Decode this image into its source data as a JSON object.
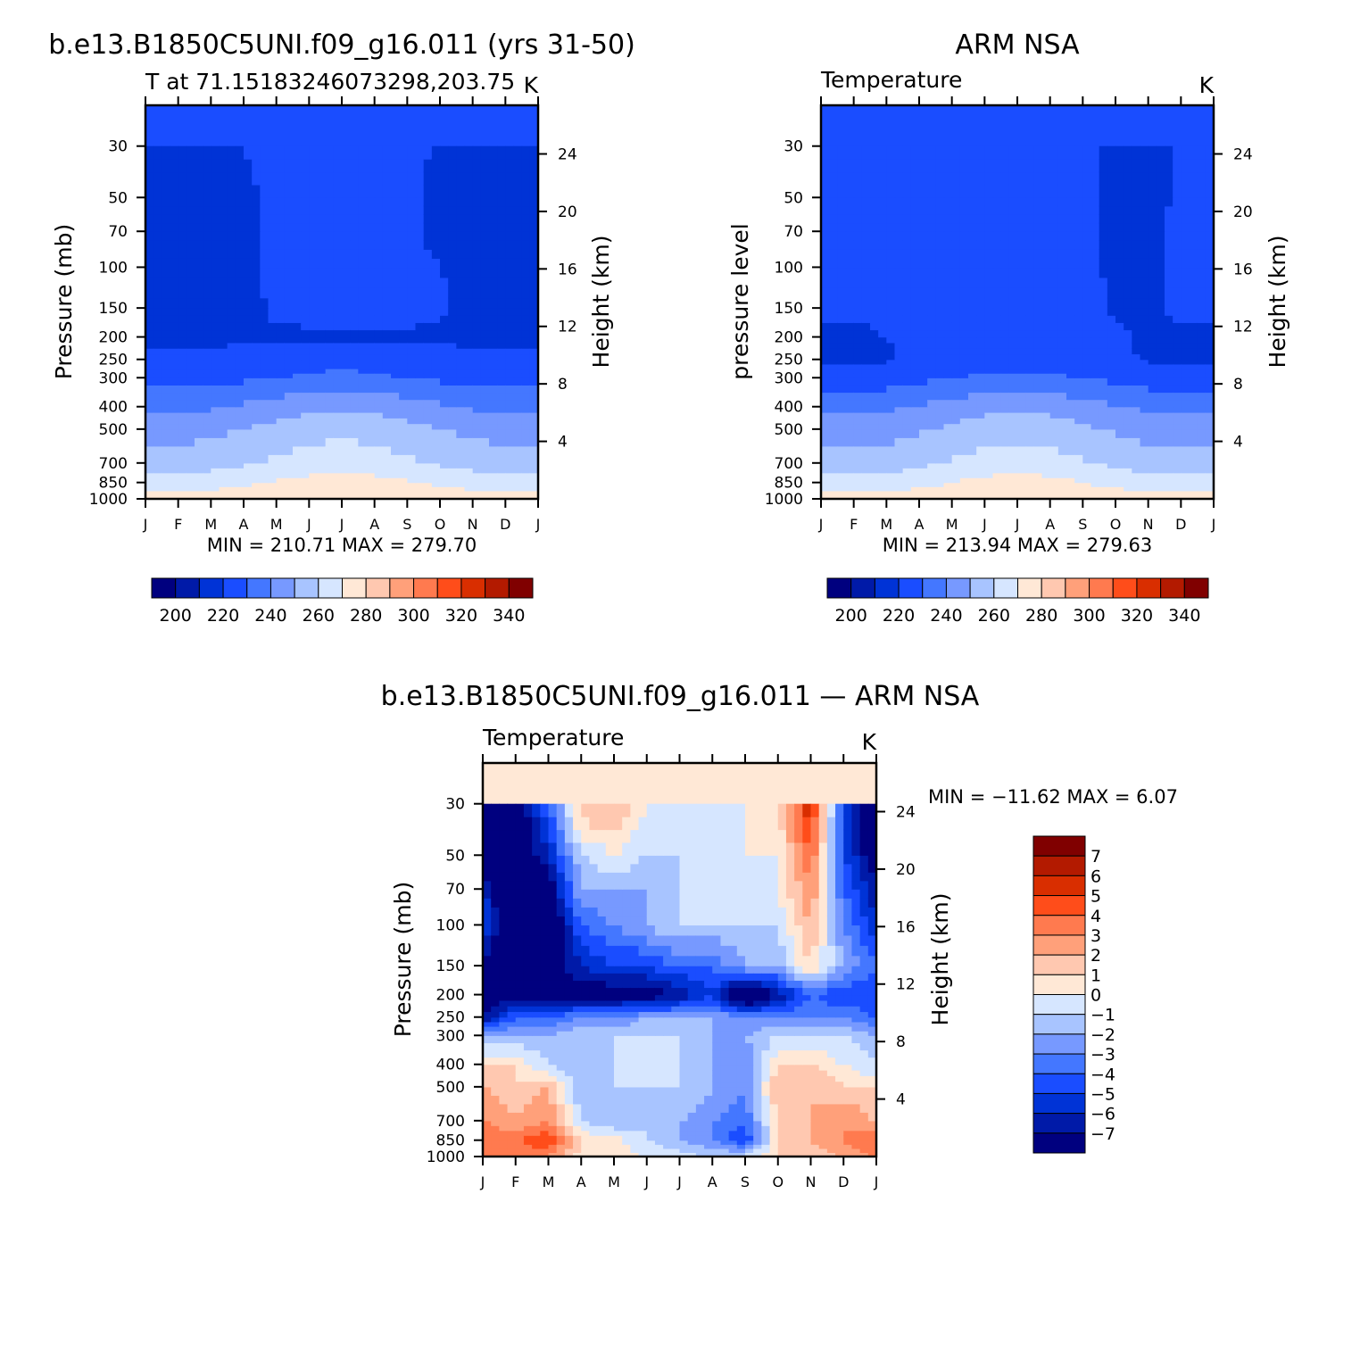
{
  "panels": {
    "model": {
      "title": "b.e13.B1850C5UNI.f09_g16.011 (yrs 31-50)",
      "subtitle": "T at 71.15183246073298,203.75",
      "units": "K",
      "ylabel": "Pressure (mb)",
      "ylabel_right": "Height (km)",
      "stats": "MIN = 210.71 MAX = 279.70"
    },
    "obs": {
      "title": "ARM NSA",
      "subtitle": "Temperature",
      "units": "K",
      "ylabel": "pressure level",
      "ylabel_right": "Height (km)",
      "stats": "MIN = 213.94 MAX = 279.63"
    },
    "diff": {
      "title": "b.e13.B1850C5UNI.f09_g16.011 — ARM NSA",
      "subtitle": "Temperature",
      "units": "K",
      "ylabel": "Pressure (mb)",
      "ylabel_right": "Height (km)",
      "stats": "MIN = −11.62 MAX =    6.07"
    }
  },
  "chart_data": [
    {
      "type": "heatmap",
      "panel": "model",
      "x": [
        "J",
        "F",
        "M",
        "A",
        "M",
        "J",
        "J",
        "A",
        "S",
        "O",
        "N",
        "D",
        "J"
      ],
      "y": [
        1000,
        850,
        700,
        500,
        400,
        300,
        250,
        200,
        150,
        100,
        70,
        50,
        30
      ],
      "y_right": [
        4,
        8,
        12,
        16,
        20,
        24
      ],
      "ylim": [
        1000,
        20
      ],
      "yscale": "log",
      "values": [
        [
          276,
          276,
          276,
          277,
          278,
          279,
          279,
          279,
          278,
          277,
          276,
          276,
          276
        ],
        [
          265,
          265,
          266,
          268,
          271,
          273,
          274,
          273,
          271,
          268,
          266,
          265,
          265
        ],
        [
          255,
          255,
          256,
          259,
          262,
          265,
          266,
          265,
          262,
          259,
          256,
          255,
          255
        ],
        [
          246,
          246,
          247,
          250,
          253,
          256,
          257,
          256,
          253,
          250,
          247,
          246,
          246
        ],
        [
          238,
          238,
          239,
          242,
          245,
          248,
          249,
          248,
          245,
          242,
          239,
          238,
          238
        ],
        [
          226,
          226,
          227,
          228,
          230,
          232,
          233,
          232,
          230,
          228,
          227,
          226,
          226
        ],
        [
          222,
          222,
          222,
          223,
          224,
          225,
          226,
          225,
          224,
          223,
          222,
          222,
          222
        ],
        [
          218,
          218,
          218,
          219,
          219,
          219,
          219,
          219,
          219,
          219,
          218,
          218,
          218
        ],
        [
          216,
          216,
          217,
          218,
          221,
          222,
          222,
          222,
          222,
          221,
          218,
          216,
          216
        ],
        [
          215,
          215,
          216,
          219,
          221,
          222,
          222,
          222,
          221,
          220,
          217,
          215,
          215
        ],
        [
          214,
          214,
          216,
          219,
          221,
          222,
          222,
          222,
          221,
          219,
          216,
          214,
          214
        ],
        [
          213,
          213,
          215,
          219,
          221,
          222,
          222,
          222,
          221,
          219,
          216,
          213,
          213
        ],
        [
          212,
          212,
          215,
          220,
          223,
          225,
          226,
          225,
          222,
          219,
          215,
          212,
          212
        ]
      ],
      "colorbar": {
        "ticks": [
          200,
          220,
          240,
          260,
          280,
          300,
          320,
          340
        ]
      }
    },
    {
      "type": "heatmap",
      "panel": "obs",
      "x": [
        "J",
        "F",
        "M",
        "A",
        "M",
        "J",
        "J",
        "A",
        "S",
        "O",
        "N",
        "D",
        "J"
      ],
      "y": [
        1000,
        850,
        700,
        500,
        400,
        300,
        250,
        200,
        150,
        100,
        70,
        50,
        30
      ],
      "y_right": [
        4,
        8,
        12,
        16,
        20,
        24
      ],
      "ylim": [
        1000,
        20
      ],
      "yscale": "log",
      "values": [
        [
          275,
          275,
          275,
          276,
          277,
          279,
          279,
          279,
          277,
          276,
          275,
          275,
          275
        ],
        [
          264,
          264,
          265,
          267,
          270,
          273,
          274,
          273,
          270,
          267,
          265,
          264,
          264
        ],
        [
          254,
          254,
          255,
          258,
          261,
          264,
          265,
          264,
          261,
          258,
          255,
          254,
          254
        ],
        [
          246,
          246,
          246,
          249,
          252,
          255,
          256,
          255,
          252,
          249,
          246,
          246,
          246
        ],
        [
          238,
          238,
          238,
          241,
          244,
          247,
          248,
          247,
          244,
          241,
          238,
          238,
          238
        ],
        [
          225,
          225,
          225,
          228,
          230,
          232,
          233,
          232,
          230,
          228,
          225,
          225,
          225
        ],
        [
          219,
          219,
          219,
          222,
          224,
          225,
          225,
          225,
          224,
          222,
          219,
          219,
          219
        ],
        [
          219,
          219,
          220,
          222,
          223,
          223,
          223,
          223,
          223,
          221,
          219,
          219,
          219
        ],
        [
          221,
          221,
          221,
          222,
          223,
          223,
          223,
          223,
          223,
          219,
          219,
          221,
          221
        ],
        [
          222,
          222,
          222,
          222,
          223,
          223,
          223,
          223,
          223,
          218,
          218,
          222,
          222
        ],
        [
          222,
          222,
          222,
          222,
          223,
          223,
          223,
          223,
          222,
          218,
          218,
          222,
          222
        ],
        [
          221,
          221,
          221,
          222,
          223,
          223,
          223,
          223,
          222,
          218,
          218,
          221,
          221
        ],
        [
          221,
          221,
          222,
          222,
          223,
          223,
          225,
          223,
          222,
          218,
          218,
          221,
          221
        ]
      ],
      "colorbar": {
        "ticks": [
          200,
          220,
          240,
          260,
          280,
          300,
          320,
          340
        ]
      }
    },
    {
      "type": "heatmap",
      "panel": "diff",
      "x": [
        "J",
        "F",
        "M",
        "A",
        "M",
        "J",
        "J",
        "A",
        "S",
        "O",
        "N",
        "D",
        "J"
      ],
      "y": [
        1000,
        850,
        700,
        500,
        400,
        300,
        250,
        200,
        150,
        100,
        70,
        50,
        30
      ],
      "y_right": [
        4,
        8,
        12,
        16,
        20,
        24
      ],
      "ylim": [
        1000,
        20
      ],
      "yscale": "log",
      "values": [
        [
          3,
          3,
          3,
          0.5,
          0.5,
          0,
          -0.5,
          -1,
          -0.5,
          1,
          1,
          2,
          3
        ],
        [
          4,
          4,
          5,
          1,
          0.5,
          -1,
          -2,
          -3,
          -5,
          1,
          2,
          3,
          4
        ],
        [
          3,
          2,
          3,
          -1,
          -2,
          -1,
          -2,
          -3,
          -4,
          1,
          2,
          3,
          2
        ],
        [
          2,
          1,
          2,
          -2,
          -1,
          -1,
          -1,
          -2,
          -3,
          2,
          2,
          1,
          1
        ],
        [
          1,
          1,
          -1,
          -2,
          -1,
          -1,
          -1,
          -2,
          -3,
          1,
          1,
          0,
          -1
        ],
        [
          -2,
          -2,
          -2,
          -1,
          -1,
          -1,
          -1,
          -2,
          -2,
          -1,
          -1,
          -1,
          -2
        ],
        [
          -7,
          -4,
          -4,
          -3,
          -3,
          -2,
          -2,
          -2,
          -3,
          -3,
          -3,
          -3,
          -4
        ],
        [
          -8,
          -8,
          -8,
          -8,
          -8,
          -8,
          -7,
          -5,
          -10,
          -7,
          -4,
          -5,
          -5
        ],
        [
          -8,
          -10,
          -8,
          -6,
          -5,
          -5,
          -4,
          -4,
          -2,
          -2,
          1,
          -2,
          -4
        ],
        [
          -4,
          -11,
          -10,
          -4,
          -3,
          -2,
          -1,
          -1,
          -1,
          -1,
          2,
          -3,
          -6
        ],
        [
          -6,
          -10,
          -8,
          -2,
          -2,
          -2,
          -1,
          -1,
          -1,
          0,
          3,
          -4,
          -7
        ],
        [
          -8,
          -9,
          -6,
          -1,
          0,
          -1,
          -1,
          -1,
          0,
          0,
          4,
          -5,
          -8
        ],
        [
          -9,
          -8,
          -4,
          2,
          2,
          0,
          0,
          0,
          0,
          1,
          6,
          -5,
          -10
        ]
      ],
      "colorbar": {
        "ticks": [
          7,
          6,
          5,
          4,
          3,
          2,
          1,
          0,
          -1,
          -2,
          -3,
          -4,
          -5,
          -6,
          -7
        ]
      }
    }
  ],
  "colors": {
    "abs": [
      "#00007f",
      "#001aa8",
      "#0033d6",
      "#1a4dff",
      "#4477ff",
      "#7799ff",
      "#a8c4ff",
      "#d6e6ff",
      "#ffe8d6",
      "#ffc8b0",
      "#ffa07a",
      "#ff7a4f",
      "#ff4d1a",
      "#d92e00",
      "#b31a00",
      "#800000"
    ],
    "diff": [
      "#00007f",
      "#001aa8",
      "#0033d6",
      "#1a4dff",
      "#4477ff",
      "#7799ff",
      "#a8c4ff",
      "#d6e6ff",
      "#ffe8d6",
      "#ffc8b0",
      "#ffa07a",
      "#ff7a4f",
      "#ff4d1a",
      "#d92e00",
      "#b31a00",
      "#800000"
    ]
  }
}
